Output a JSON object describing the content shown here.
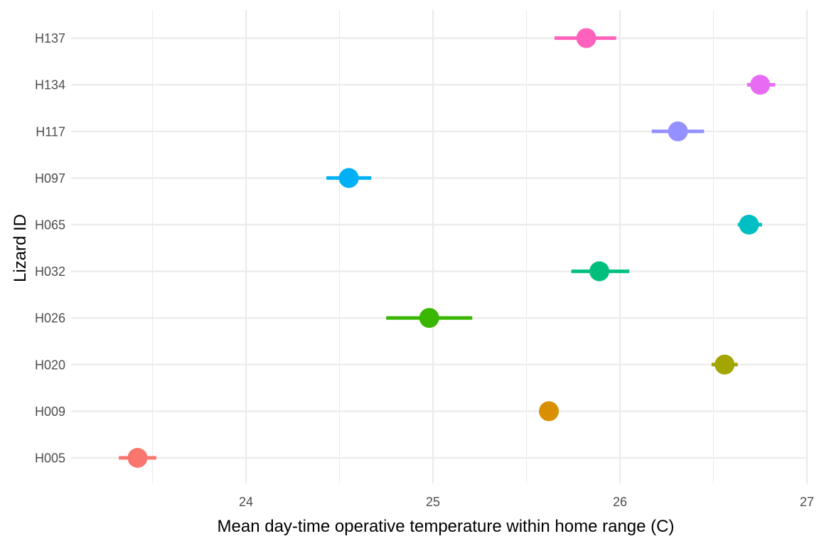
{
  "chart_data": {
    "type": "scatter",
    "xlabel": "Mean day-time operative temperature within home range (C)",
    "ylabel": "Lizard ID",
    "xlim": [
      23.1,
      27.0
    ],
    "x_ticks": [
      "24",
      "25",
      "26",
      "27"
    ],
    "grid": true,
    "legend": "none",
    "categories": [
      "H005",
      "H009",
      "H020",
      "H026",
      "H032",
      "H065",
      "H097",
      "H117",
      "H134",
      "H137"
    ],
    "series": [
      {
        "label": "H005",
        "mean": 23.42,
        "lower": 23.32,
        "upper": 23.52,
        "color": "#F8766D"
      },
      {
        "label": "H009",
        "mean": 25.62,
        "lower": 25.62,
        "upper": 25.62,
        "color": "#D89000"
      },
      {
        "label": "H020",
        "mean": 26.56,
        "lower": 26.49,
        "upper": 26.63,
        "color": "#A3A500"
      },
      {
        "label": "H026",
        "mean": 24.98,
        "lower": 24.75,
        "upper": 25.21,
        "color": "#39B600"
      },
      {
        "label": "H032",
        "mean": 25.89,
        "lower": 25.74,
        "upper": 26.05,
        "color": "#00BF7D"
      },
      {
        "label": "H065",
        "mean": 26.69,
        "lower": 26.63,
        "upper": 26.76,
        "color": "#00BFC4"
      },
      {
        "label": "H097",
        "mean": 24.55,
        "lower": 24.43,
        "upper": 24.67,
        "color": "#00B0F6"
      },
      {
        "label": "H117",
        "mean": 26.31,
        "lower": 26.17,
        "upper": 26.45,
        "color": "#9590FF"
      },
      {
        "label": "H134",
        "mean": 26.75,
        "lower": 26.68,
        "upper": 26.83,
        "color": "#E76BF3"
      },
      {
        "label": "H137",
        "mean": 25.82,
        "lower": 25.65,
        "upper": 25.98,
        "color": "#FF62BC"
      }
    ]
  }
}
